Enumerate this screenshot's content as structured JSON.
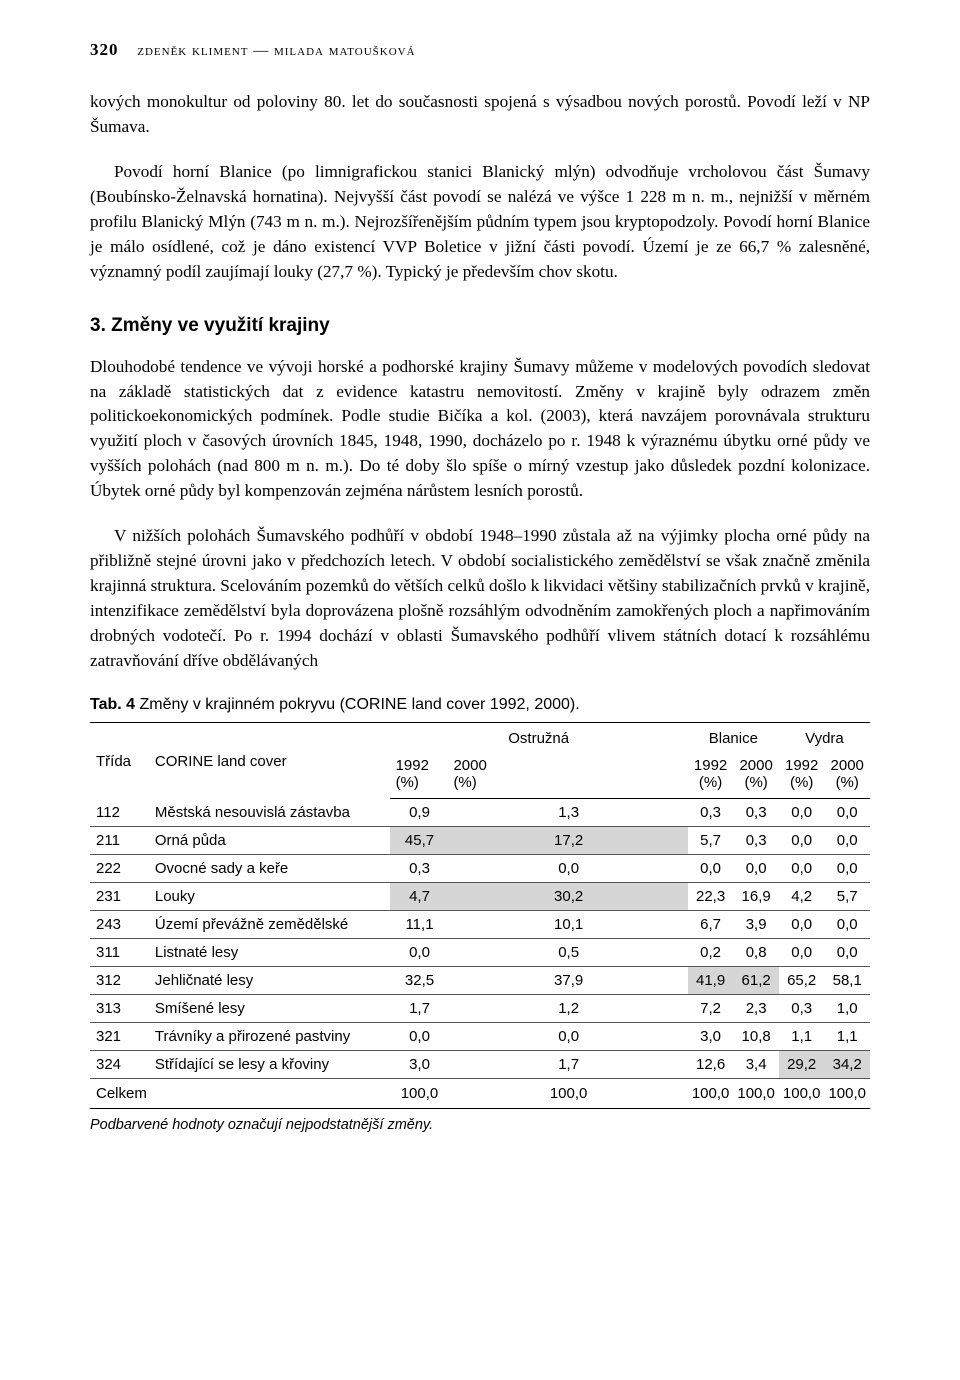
{
  "header": {
    "page_number": "320",
    "authors": "zdeněk kliment — milada matoušková"
  },
  "para1": "kových monokultur od poloviny 80. let do současnosti spojená s výsadbou nových porostů. Povodí leží v NP Šumava.",
  "para2": "Povodí horní Blanice (po limnigrafickou stanici Blanický mlýn) odvodňuje vrcholovou část Šumavy (Boubínsko-Želnavská hornatina). Nejvyšší část povodí se nalézá ve výšce 1 228 m n. m., nejnižší v měrném profilu Blanický Mlýn (743 m n. m.). Nejrozšířenějším půdním typem jsou kryptopodzoly. Povodí horní Blanice je málo osídlené, což je dáno existencí VVP Boletice v jižní části povodí. Území je ze 66,7 % zalesněné, významný podíl zaujímají louky (27,7 %). Typický je především chov skotu.",
  "section_heading": "3. Změny ve využití krajiny",
  "para3": "Dlouhodobé tendence ve vývoji horské a podhorské krajiny Šumavy můžeme v modelových povodích sledovat na základě statistických dat z evidence katastru nemovitostí. Změny v krajině byly odrazem změn politickoekonomických podmínek. Podle studie Bičíka a kol. (2003), která navzájem porovnávala strukturu využití ploch v časových úrovních 1845, 1948, 1990, docházelo po r. 1948 k výraznému úbytku orné půdy ve vyšších polohách (nad 800 m n. m.). Do té doby šlo spíše o mírný vzestup jako důsledek pozdní kolonizace. Úbytek orné půdy byl kompenzován zejména nárůstem lesních porostů.",
  "para4": "V nižších polohách Šumavského podhůří v období 1948–1990 zůstala až na výjimky plocha orné půdy na přibližně stejné úrovni jako v předchozích letech. V období socialistického zemědělství se však značně změnila krajinná struktura. Scelováním pozemků do větších celků došlo k likvidaci většiny stabilizačních prvků v krajině, intenzifikace zemědělství byla doprovázena plošně rozsáhlým odvodněním zamokřených ploch a napřimováním drobných vodotečí. Po r. 1994 dochází v oblasti Šumavského podhůří vlivem státních dotací k rozsáhlému zatravňování dříve obdělávaných",
  "table": {
    "caption_label": "Tab. 4",
    "caption_text": "Změny v krajinném pokryvu (CORINE land cover 1992, 2000).",
    "head_col1": "Třída",
    "head_col2": "CORINE land cover",
    "groups": [
      "Ostružná",
      "Blanice",
      "Vydra"
    ],
    "sub_years": [
      "1992",
      "2000",
      "1992",
      "2000",
      "1992",
      "2000"
    ],
    "sub_unit": "(%)",
    "rows": [
      {
        "c1": "112",
        "c2": "Městská nesouvislá zástavba",
        "v": [
          "0,9",
          "1,3",
          "0,3",
          "0,3",
          "0,0",
          "0,0"
        ],
        "hl": []
      },
      {
        "c1": "211",
        "c2": "Orná půda",
        "v": [
          "45,7",
          "17,2",
          "5,7",
          "0,3",
          "0,0",
          "0,0"
        ],
        "hl": [
          0,
          1
        ]
      },
      {
        "c1": "222",
        "c2": "Ovocné sady a keře",
        "v": [
          "0,3",
          "0,0",
          "0,0",
          "0,0",
          "0,0",
          "0,0"
        ],
        "hl": []
      },
      {
        "c1": "231",
        "c2": "Louky",
        "v": [
          "4,7",
          "30,2",
          "22,3",
          "16,9",
          "4,2",
          "5,7"
        ],
        "hl": [
          0,
          1
        ]
      },
      {
        "c1": "243",
        "c2": "Území převážně zemědělské",
        "v": [
          "11,1",
          "10,1",
          "6,7",
          "3,9",
          "0,0",
          "0,0"
        ],
        "hl": []
      },
      {
        "c1": "311",
        "c2": "Listnaté lesy",
        "v": [
          "0,0",
          "0,5",
          "0,2",
          "0,8",
          "0,0",
          "0,0"
        ],
        "hl": []
      },
      {
        "c1": "312",
        "c2": "Jehličnaté lesy",
        "v": [
          "32,5",
          "37,9",
          "41,9",
          "61,2",
          "65,2",
          "58,1"
        ],
        "hl": [
          2,
          3
        ]
      },
      {
        "c1": "313",
        "c2": "Smíšené lesy",
        "v": [
          "1,7",
          "1,2",
          "7,2",
          "2,3",
          "0,3",
          "1,0"
        ],
        "hl": []
      },
      {
        "c1": "321",
        "c2": "Trávníky a přirozené pastviny",
        "v": [
          "0,0",
          "0,0",
          "3,0",
          "10,8",
          "1,1",
          "1,1"
        ],
        "hl": []
      },
      {
        "c1": "324",
        "c2": "Střídající se lesy a křoviny",
        "v": [
          "3,0",
          "1,7",
          "12,6",
          "3,4",
          "29,2",
          "34,2"
        ],
        "hl": [
          4,
          5
        ]
      }
    ],
    "total": {
      "c1": "Celkem",
      "c2": "",
      "v": [
        "100,0",
        "100,0",
        "100,0",
        "100,0",
        "100,0",
        "100,0"
      ]
    },
    "footnote": "Podbarvené hodnoty označují nejpodstatnější změny.",
    "highlight_color": "#d6d6d6"
  }
}
